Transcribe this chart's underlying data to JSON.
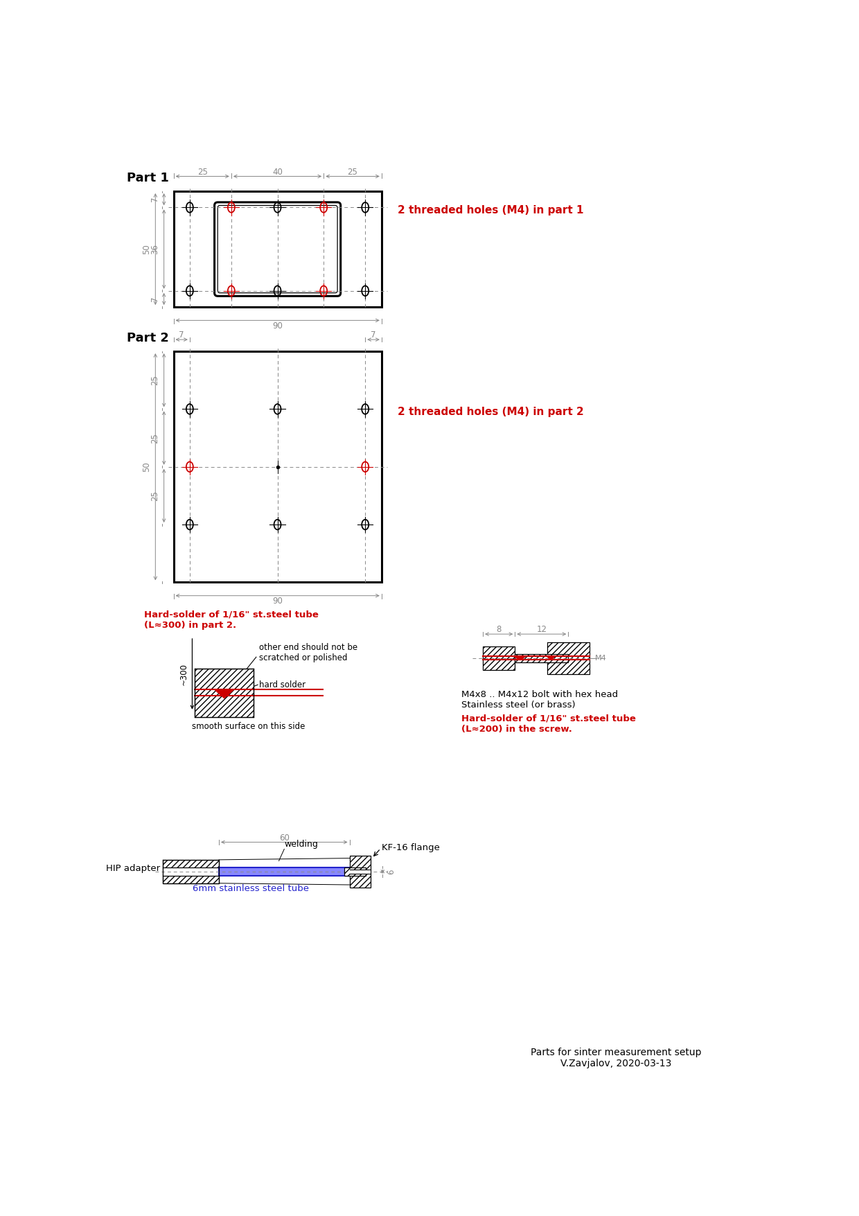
{
  "bg_color": "#ffffff",
  "line_color": "#000000",
  "red_color": "#cc0000",
  "gray_color": "#888888",
  "part1_label": "Part 1",
  "part2_label": "Part 2",
  "annotation1": "2 threaded holes (M4) in part 1",
  "annotation2": "2 threaded holes (M4) in part 2",
  "hard_solder_title": "Hard-solder of 1/16\" st.steel tube\n(L≈300) in part 2.",
  "other_end_text": "other end should not be\nscratched or polished",
  "hard_solder_label": "hard solder",
  "smooth_surface": "smooth surface on this side",
  "bolt_text": "M4x8 .. M4x12 bolt with hex head\nStainless steel (or brass)",
  "hard_solder_screw": "Hard-solder of 1/16\" st.steel tube\n(L≈200) in the screw.",
  "footer": "Parts for sinter measurement setup\nV.Zavjalov, 2020-03-13",
  "kf16_label": "KF-16 flange",
  "hip_adapter": "HIP adapter",
  "welding": "welding",
  "tube_label": "6mm stainless steel tube",
  "dim_8_12": "8  12",
  "dim_m4": "M4",
  "dim_90_1": "90",
  "dim_90_2": "90",
  "dim_25a": "25",
  "dim_40": "40",
  "dim_25b": "25",
  "dim_7a": "7",
  "dim_36": "36",
  "dim_7b": "7",
  "dim_50_1": "50",
  "dim_7c": "7",
  "dim_7d": "7",
  "dim_25c": "25",
  "dim_25d": "25",
  "dim_25e": "25",
  "dim_50_2": "50",
  "dim_300": "~300",
  "dim_60": "60",
  "dim_6": "6"
}
